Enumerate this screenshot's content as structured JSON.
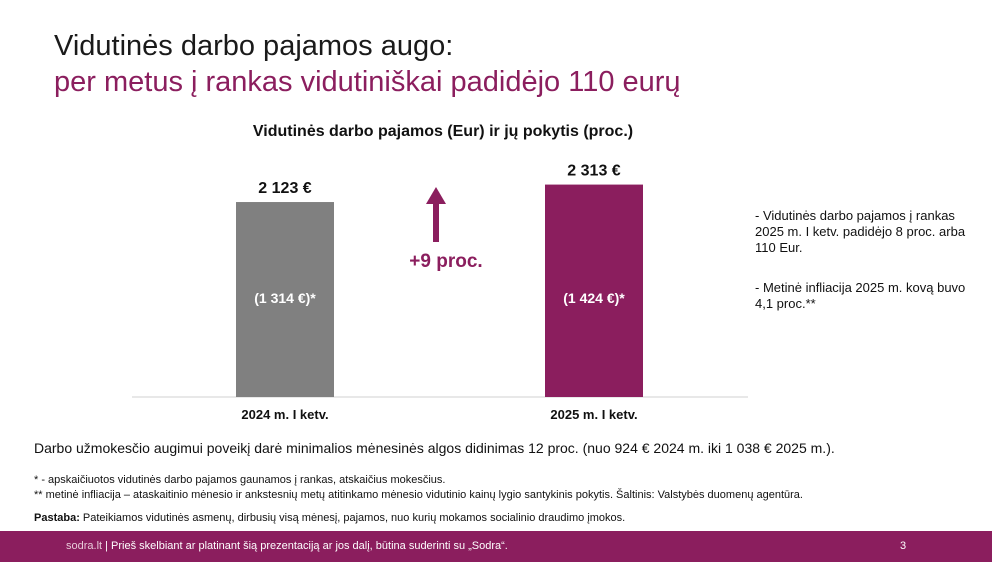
{
  "title": {
    "line1": "Vidutinės darbo pajamos augo:",
    "line2": "per metus į rankas vidutiniškai padidėjo 110 eurų"
  },
  "chart_data": {
    "type": "bar",
    "title": "Vidutinės darbo pajamos (Eur) ir jų pokytis (proc.)",
    "categories": [
      "2024 m. I ketv.",
      "2025 m. I ketv."
    ],
    "values": [
      2123,
      2313
    ],
    "value_labels": [
      "2 123 €",
      "2 313 €"
    ],
    "inner_labels": [
      "(1 314 €)*",
      "(1 424 €)*"
    ],
    "bar_colors": [
      "#808080",
      "#8b1e5e"
    ],
    "change_label": "+9 proc.",
    "change_color": "#8b1e5e",
    "ylim": [
      0,
      2450
    ],
    "grid": false,
    "legend": "none"
  },
  "notes": {
    "note1": "- Vidutinės darbo pajamos į rankas 2025 m. I ketv. padidėjo 8 proc. arba 110 Eur.",
    "note2": "- Metinė infliacija 2025 m. kovą buvo 4,1 proc.**"
  },
  "main_text": "Darbo užmokesčio augimui poveikį darė minimalios mėnesinės algos didinimas 12 proc. (nuo 924 € 2024 m. iki 1 038  €  2025 m.).",
  "footnotes": {
    "f1": "* - apskaičiuotos vidutinės darbo pajamos gaunamos į rankas, atskaičius mokesčius.",
    "f2": "** metinė infliacija – ataskaitinio mėnesio ir ankstesnių metų atitinkamo mėnesio vidutinio kainų lygio santykinis pokytis. Šaltinis: Valstybės duomenų agentūra.",
    "pastaba_label": "Pastaba:",
    "pastaba_text": " Pateikiamos vidutinės asmenų, dirbusių visą mėnesį, pajamos, nuo kurių mokamos socialinio draudimo įmokos."
  },
  "footer": {
    "brand": "sodra.lt",
    "text": " | Prieš skelbiant ar platinant šią prezentaciją ar jos dalį, būtina suderinti su „Sodra“.",
    "page": "3"
  }
}
